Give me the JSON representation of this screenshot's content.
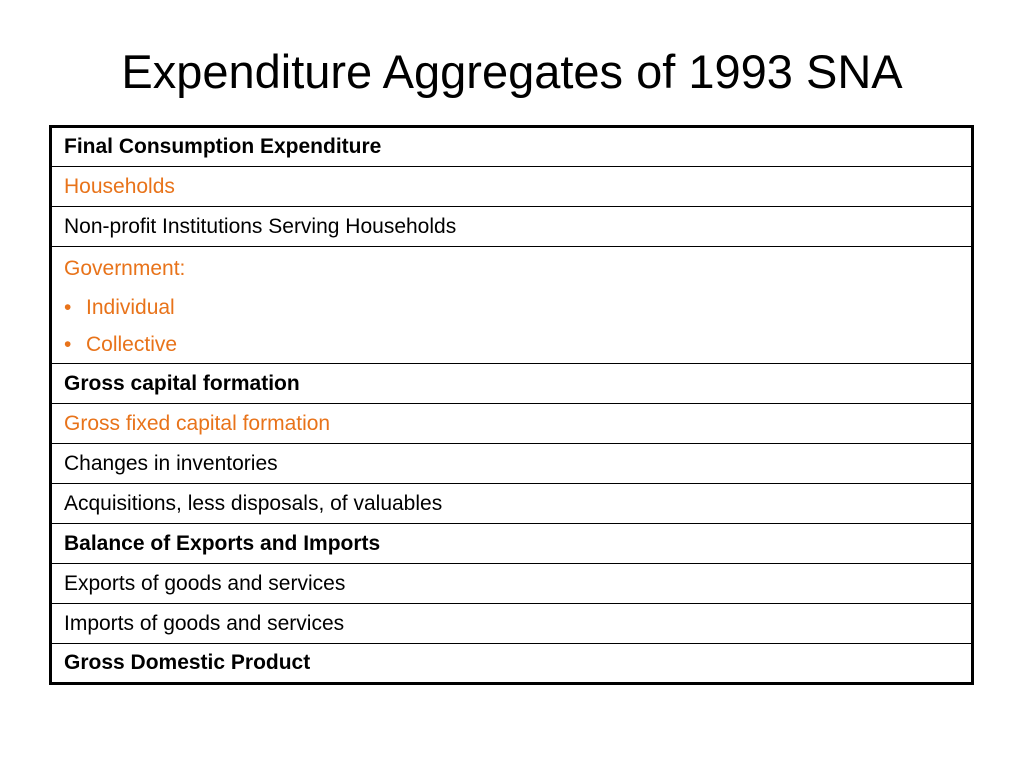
{
  "title": "Expenditure Aggregates of 1993 SNA",
  "colors": {
    "accent_orange": "#e8731a",
    "text": "#000000",
    "background": "#ffffff"
  },
  "rows": [
    {
      "label": "Final Consumption Expenditure",
      "style": "bold"
    },
    {
      "label": "Households",
      "style": "orange"
    },
    {
      "label": "Non-profit Institutions Serving Households",
      "style": "normal"
    },
    {
      "label": "Government:",
      "style": "orange",
      "bullets": [
        "Individual",
        "Collective"
      ]
    },
    {
      "label": "Gross capital formation",
      "style": "bold"
    },
    {
      "label": "Gross fixed capital formation",
      "style": "orange"
    },
    {
      "label": "Changes in inventories",
      "style": "normal"
    },
    {
      "label": "Acquisitions, less disposals, of valuables",
      "style": "normal"
    },
    {
      "label": "Balance of Exports and Imports",
      "style": "bold"
    },
    {
      "label": "Exports of goods and services",
      "style": "normal"
    },
    {
      "label": "Imports of goods and services",
      "style": "normal"
    },
    {
      "label": "Gross Domestic Product",
      "style": "bold"
    }
  ],
  "bullet_symbol": "•"
}
